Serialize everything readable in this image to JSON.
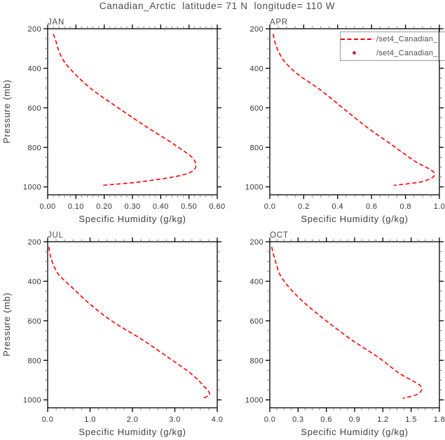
{
  "title": "Canadian_Arctic  latitude= 71 N  longitude= 110 W",
  "y_axis_title": "Pressure (mb)",
  "x_axis_title": "Specific Humidity (g/kg)",
  "colors": {
    "curve": "#ff0000",
    "marker": "#b02f5f",
    "frame": "#000000",
    "tick_major": "#000000",
    "tick_minor": "#777777",
    "background": "#ffffff"
  },
  "legend": {
    "position": "top-right-of-APR-panel",
    "entries": [
      {
        "label": "/set4_Canadian_",
        "symbol": "dashed-line",
        "color": "#ff0000"
      },
      {
        "label": "/set4_Canadian_",
        "symbol": "dot",
        "color": "#b02f5f"
      }
    ]
  },
  "chart_data": [
    {
      "type": "line",
      "title": "JAN",
      "xlabel": "Specific Humidity (g/kg)",
      "ylabel": "Pressure (mb)",
      "xlim": [
        0,
        0.6
      ],
      "ylim": [
        200,
        1040
      ],
      "y_inverted": true,
      "xtick_values": [
        0,
        0.1,
        0.2,
        0.3,
        0.4,
        0.5,
        0.6
      ],
      "xtick_labels": [
        "0.00",
        "0.10",
        "0.20",
        "0.30",
        "0.40",
        "0.50",
        "0.60"
      ],
      "x_minor_step": 0.02,
      "ytick_values": [
        200,
        400,
        600,
        800,
        1000
      ],
      "ytick_labels": [
        "200",
        "400",
        "600",
        "800",
        "1000"
      ],
      "y_minor_step": 50,
      "series": [
        {
          "name": "/set4_Canadian_",
          "color": "#ff0000",
          "line_style": "dashed",
          "y_pressure_mb": [
            226.5,
            266.5,
            313.5,
            368.8,
            433.9,
            510.5,
            600.5,
            696.8,
            787.7,
            867.2,
            929.6,
            970.6,
            992.6
          ],
          "x_q_g_per_kg": [
            0.02,
            0.03,
            0.04,
            0.06,
            0.1,
            0.16,
            0.25,
            0.35,
            0.45,
            0.52,
            0.5,
            0.35,
            0.19
          ]
        }
      ]
    },
    {
      "type": "line",
      "title": "APR",
      "xlabel": "Specific Humidity (g/kg)",
      "ylabel": "",
      "xlim": [
        0,
        1.0
      ],
      "ylim": [
        200,
        1040
      ],
      "y_inverted": true,
      "xtick_values": [
        0,
        0.2,
        0.4,
        0.6,
        0.8,
        1.0
      ],
      "xtick_labels": [
        "0.0",
        "0.2",
        "0.4",
        "0.6",
        "0.8",
        "1.0"
      ],
      "x_minor_step": 0.05,
      "ytick_values": [
        200,
        400,
        600,
        800,
        1000
      ],
      "ytick_labels": [
        "200",
        "400",
        "600",
        "800",
        "1000"
      ],
      "y_minor_step": 50,
      "series": [
        {
          "name": "/set4_Canadian_",
          "color": "#ff0000",
          "line_style": "dashed",
          "y_pressure_mb": [
            226.5,
            266.5,
            313.5,
            368.8,
            433.9,
            510.5,
            600.5,
            696.8,
            787.7,
            867.2,
            929.6,
            970.6,
            992.6
          ],
          "x_q_g_per_kg": [
            0.02,
            0.03,
            0.05,
            0.09,
            0.17,
            0.3,
            0.43,
            0.57,
            0.72,
            0.85,
            0.97,
            0.91,
            0.73
          ]
        }
      ]
    },
    {
      "type": "line",
      "title": "JUL",
      "xlabel": "Specific Humidity (g/kg)",
      "ylabel": "Pressure (mb)",
      "xlim": [
        0,
        4.0
      ],
      "ylim": [
        200,
        1040
      ],
      "y_inverted": true,
      "xtick_values": [
        0,
        1.0,
        2.0,
        3.0,
        4.0
      ],
      "xtick_labels": [
        "0.0",
        "1.0",
        "2.0",
        "3.0",
        "4.0"
      ],
      "x_minor_step": 0.2,
      "ytick_values": [
        200,
        400,
        600,
        800,
        1000
      ],
      "ytick_labels": [
        "200",
        "400",
        "600",
        "800",
        "1000"
      ],
      "y_minor_step": 50,
      "series": [
        {
          "name": "/set4_Canadian_",
          "color": "#ff0000",
          "line_style": "dashed",
          "y_pressure_mb": [
            226.5,
            266.5,
            313.5,
            368.8,
            433.9,
            510.5,
            600.5,
            696.8,
            787.7,
            867.2,
            929.6,
            970.6,
            992.6
          ],
          "x_q_g_per_kg": [
            0.03,
            0.06,
            0.13,
            0.27,
            0.59,
            0.97,
            1.51,
            2.24,
            2.86,
            3.38,
            3.68,
            3.82,
            3.66
          ]
        }
      ]
    },
    {
      "type": "line",
      "title": "OCT",
      "xlabel": "Specific Humidity (g/kg)",
      "ylabel": "",
      "xlim": [
        0,
        1.8
      ],
      "ylim": [
        200,
        1040
      ],
      "y_inverted": true,
      "xtick_values": [
        0,
        0.3,
        0.6,
        0.9,
        1.2,
        1.5,
        1.8
      ],
      "xtick_labels": [
        "0.0",
        "0.3",
        "0.6",
        "0.9",
        "1.2",
        "1.5",
        "1.8"
      ],
      "x_minor_step": 0.075,
      "ytick_values": [
        200,
        400,
        600,
        800,
        1000
      ],
      "ytick_labels": [
        "200",
        "400",
        "600",
        "800",
        "1000"
      ],
      "y_minor_step": 50,
      "series": [
        {
          "name": "/set4_Canadian_",
          "color": "#ff0000",
          "line_style": "dashed",
          "y_pressure_mb": [
            226.5,
            266.5,
            313.5,
            368.8,
            433.9,
            510.5,
            600.5,
            696.8,
            787.7,
            867.2,
            929.6,
            970.6,
            992.6
          ],
          "x_q_g_per_kg": [
            0.02,
            0.04,
            0.07,
            0.11,
            0.21,
            0.37,
            0.6,
            0.87,
            1.16,
            1.38,
            1.6,
            1.57,
            1.41
          ]
        }
      ]
    }
  ]
}
